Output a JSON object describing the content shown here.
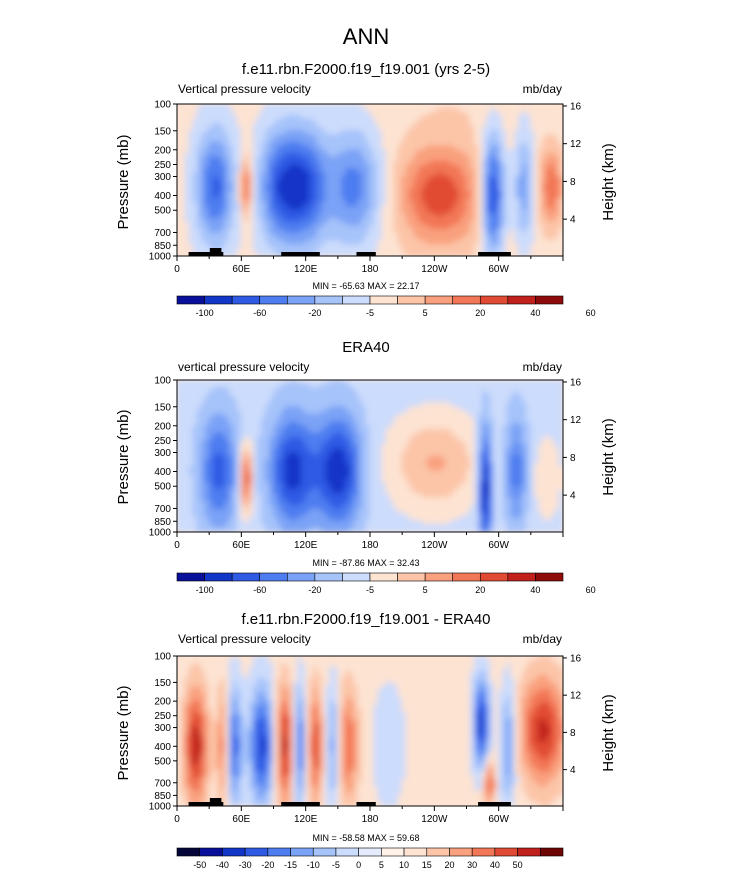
{
  "figure": {
    "title": "ANN"
  },
  "colors": {
    "blues": [
      "#08109a",
      "#1236c8",
      "#2e5ae4",
      "#4e7df0",
      "#7aa2f6",
      "#a6c3fa",
      "#ccdcfc"
    ],
    "reds": [
      "#fde3d2",
      "#fcc5a8",
      "#f9a07e",
      "#f27756",
      "#e14b33",
      "#c0211c",
      "#8e0b0b"
    ]
  },
  "chart_data": [
    {
      "type": "heatmap",
      "title": "f.e11.rbn.F2000.f19_f19.001 (yrs 2-5)",
      "left_label": "Vertical pressure velocity",
      "right_label": "mb/day",
      "ylabel": "Pressure (mb)",
      "ylabel_right": "Height (km)",
      "y_ticks": [
        "100",
        "150",
        "200",
        "250",
        "300",
        "400",
        "500",
        "700",
        "850",
        "1000"
      ],
      "y_right_ticks": [
        "16",
        "12",
        "8",
        "4"
      ],
      "x_ticks": [
        "0",
        "60E",
        "120E",
        "180",
        "120W",
        "60W"
      ],
      "stats": "MIN = -65.63  MAX = 22.17",
      "colorbar_labels": [
        "-100",
        "-60",
        "-20",
        "-5",
        "5",
        "20",
        "40",
        "60"
      ]
    },
    {
      "type": "heatmap",
      "title": "ERA40",
      "left_label": "vertical pressure velocity",
      "right_label": "mb/day",
      "ylabel": "Pressure (mb)",
      "ylabel_right": "Height (km)",
      "y_ticks": [
        "100",
        "150",
        "200",
        "250",
        "300",
        "400",
        "500",
        "700",
        "850",
        "1000"
      ],
      "y_right_ticks": [
        "16",
        "12",
        "8",
        "4"
      ],
      "x_ticks": [
        "0",
        "60E",
        "120E",
        "180",
        "120W",
        "60W"
      ],
      "stats": "MIN = -87.86  MAX = 32.43",
      "colorbar_labels": [
        "-100",
        "-60",
        "-20",
        "-5",
        "5",
        "20",
        "40",
        "60"
      ]
    },
    {
      "type": "heatmap",
      "title": "f.e11.rbn.F2000.f19_f19.001 - ERA40",
      "left_label": "Vertical pressure velocity",
      "right_label": "mb/day",
      "ylabel": "Pressure (mb)",
      "ylabel_right": "Height (km)",
      "y_ticks": [
        "100",
        "150",
        "200",
        "250",
        "300",
        "400",
        "500",
        "700",
        "850",
        "1000"
      ],
      "y_right_ticks": [
        "16",
        "12",
        "8",
        "4"
      ],
      "x_ticks": [
        "0",
        "60E",
        "120E",
        "180",
        "120W",
        "60W"
      ],
      "stats": "MIN = -58.58  MAX = 59.68",
      "colorbar_labels": [
        "-50",
        "-40",
        "-30",
        "-20",
        "-15",
        "-10",
        "-5",
        "0",
        "5",
        "10",
        "15",
        "20",
        "30",
        "40",
        "50"
      ]
    }
  ]
}
